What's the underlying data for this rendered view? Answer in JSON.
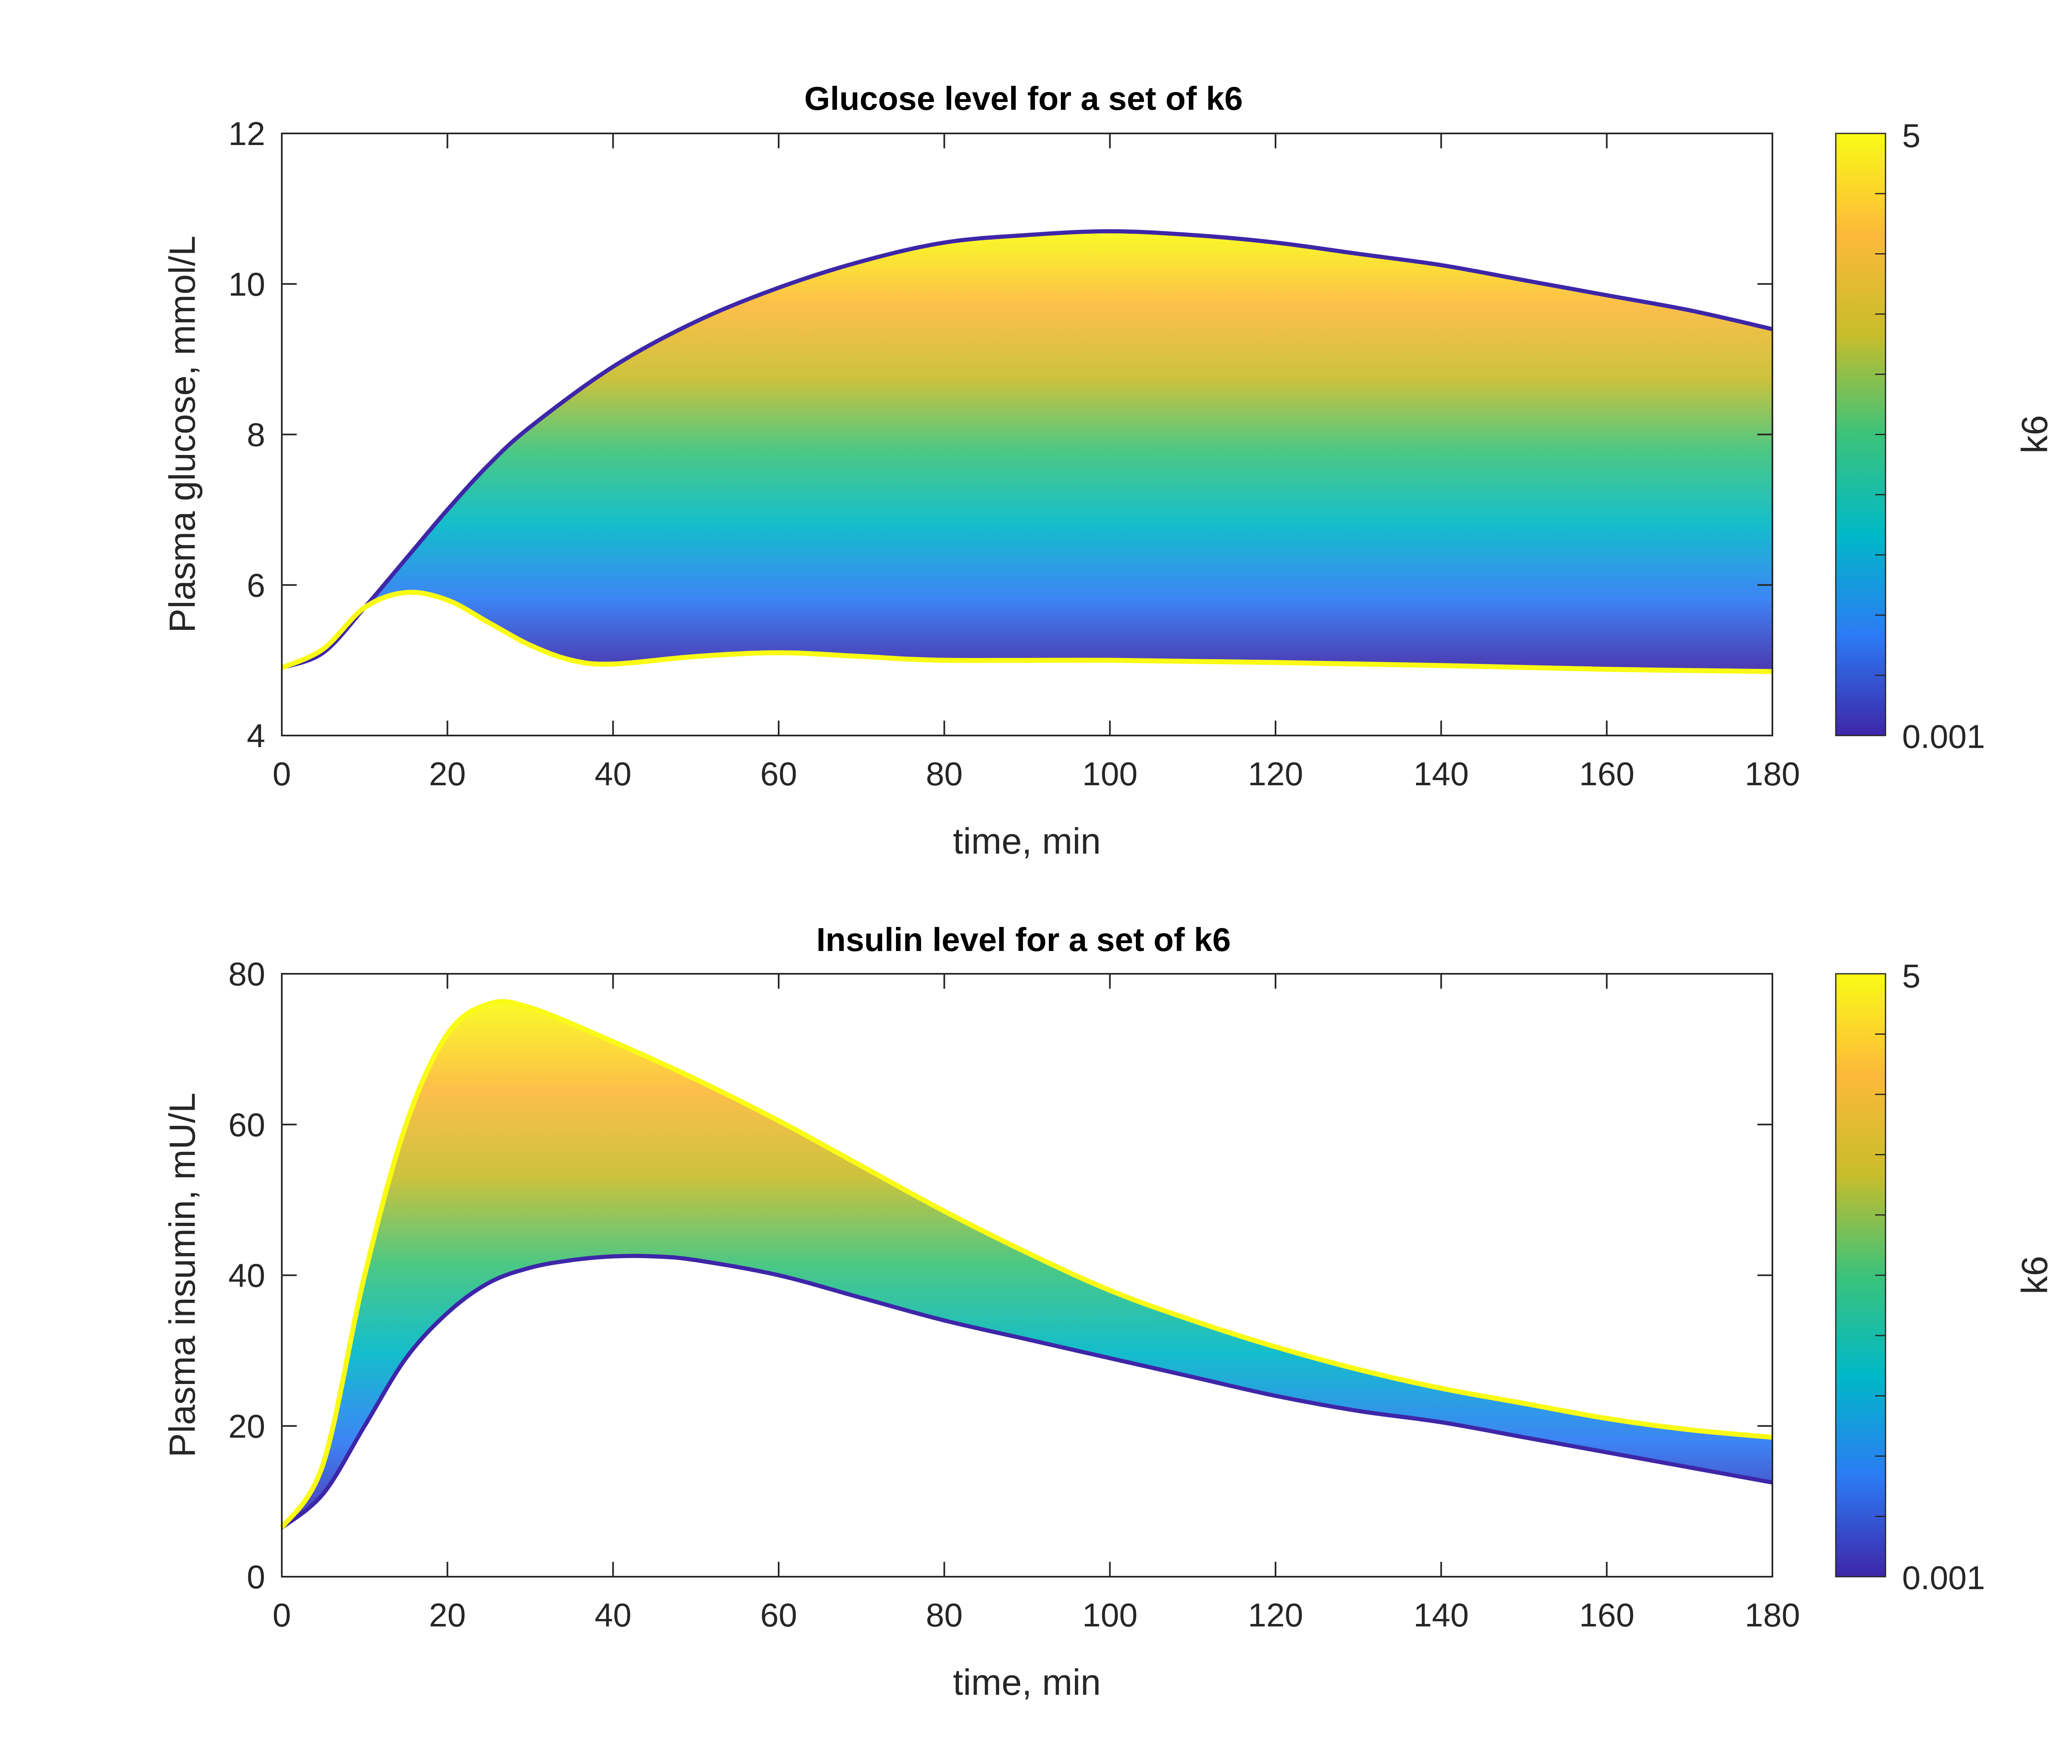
{
  "chart_data": [
    {
      "type": "line",
      "title": "Glucose level for a set of k6",
      "xlabel": "time, min",
      "ylabel": "Plasma glucose, mmol/L",
      "xlim": [
        0,
        180
      ],
      "ylim": [
        4,
        12
      ],
      "xticks": [
        0,
        20,
        40,
        60,
        80,
        100,
        120,
        140,
        160,
        180
      ],
      "yticks": [
        4,
        6,
        8,
        10,
        12
      ],
      "colorbar": {
        "label": "k6",
        "min": 0.001,
        "max": 5,
        "min_label": "0.001",
        "max_label": "5"
      },
      "colormap": [
        "#3e26a8",
        "#2c7bf5",
        "#00b8c7",
        "#3cc37a",
        "#c8bd2b",
        "#fdb93a",
        "#f9fb15"
      ],
      "envelope_low_k6": {
        "x": [
          0,
          5,
          10,
          15,
          20,
          25,
          30,
          40,
          50,
          60,
          70,
          80,
          90,
          100,
          110,
          120,
          130,
          140,
          150,
          160,
          170,
          180
        ],
        "y": [
          4.9,
          5.1,
          5.7,
          6.35,
          7.0,
          7.6,
          8.1,
          8.9,
          9.5,
          9.95,
          10.3,
          10.55,
          10.65,
          10.7,
          10.65,
          10.55,
          10.4,
          10.25,
          10.05,
          9.85,
          9.65,
          9.4
        ]
      },
      "envelope_high_k6": {
        "x": [
          0,
          5,
          10,
          15,
          20,
          25,
          30,
          35,
          40,
          50,
          60,
          70,
          80,
          100,
          120,
          140,
          160,
          180
        ],
        "y": [
          4.9,
          5.15,
          5.7,
          5.9,
          5.8,
          5.5,
          5.2,
          5.0,
          4.95,
          5.05,
          5.1,
          5.05,
          5.0,
          5.0,
          4.97,
          4.93,
          4.88,
          4.85
        ]
      }
    },
    {
      "type": "line",
      "title": "Insulin level for a set of k6",
      "xlabel": "time, min",
      "ylabel": "Plasma insumin, mU/L",
      "xlim": [
        0,
        180
      ],
      "ylim": [
        0,
        80
      ],
      "xticks": [
        0,
        20,
        40,
        60,
        80,
        100,
        120,
        140,
        160,
        180
      ],
      "yticks": [
        0,
        20,
        40,
        60,
        80
      ],
      "colorbar": {
        "label": "k6",
        "min": 0.001,
        "max": 5,
        "min_label": "0.001",
        "max_label": "5"
      },
      "colormap": [
        "#3e26a8",
        "#2c7bf5",
        "#00b8c7",
        "#3cc37a",
        "#c8bd2b",
        "#fdb93a",
        "#f9fb15"
      ],
      "envelope_low_k6": {
        "x": [
          0,
          5,
          10,
          15,
          20,
          25,
          30,
          35,
          40,
          45,
          50,
          60,
          70,
          80,
          90,
          100,
          110,
          120,
          130,
          140,
          150,
          160,
          170,
          180
        ],
        "y": [
          6.5,
          11,
          20,
          29,
          35,
          39,
          41,
          42,
          42.5,
          42.5,
          42,
          40,
          37,
          34,
          31.5,
          29,
          26.5,
          24,
          22,
          20.5,
          18.5,
          16.5,
          14.5,
          12.5
        ]
      },
      "envelope_high_k6": {
        "x": [
          0,
          5,
          10,
          15,
          20,
          25,
          30,
          40,
          50,
          60,
          70,
          80,
          90,
          100,
          110,
          120,
          130,
          140,
          150,
          160,
          170,
          180
        ],
        "y": [
          6.5,
          15,
          40,
          60,
          72,
          76,
          75.5,
          71,
          66,
          60.5,
          54.5,
          48.5,
          43,
          38,
          34,
          30.5,
          27.5,
          25,
          23,
          21,
          19.5,
          18.5
        ]
      }
    }
  ]
}
